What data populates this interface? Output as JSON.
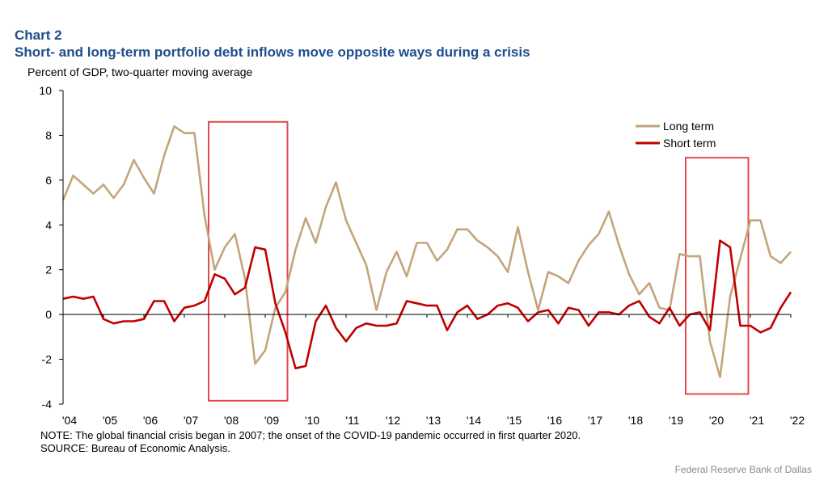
{
  "header": {
    "chart_label": "Chart 2",
    "title": "Short- and long-term portfolio debt inflows move opposite ways during a crisis",
    "y_unit": "Percent of GDP, two-quarter moving  average"
  },
  "footer": {
    "note": "NOTE: The global financial crisis began in 2007; the onset of the COVID-19 pandemic occurred in first quarter 2020.",
    "source": "SOURCE:  Bureau of Economic  Analysis.",
    "credit": "Federal Reserve  Bank of Dallas"
  },
  "colors": {
    "long_term": "#c4a57b",
    "short_term": "#c00000",
    "highlight_box": "#e8474b",
    "axis": "#000000"
  },
  "chart_data": {
    "type": "line",
    "xlabel": "",
    "ylabel": "Percent of GDP, two-quarter moving  average",
    "ylim": [
      -4,
      10
    ],
    "yticks": [
      -4,
      -2,
      0,
      2,
      4,
      6,
      8,
      10
    ],
    "xlim": [
      2004,
      2022
    ],
    "xtick_labels": [
      "'04",
      "'05",
      "'06",
      "'07",
      "'08",
      "'09",
      "'10",
      "'11",
      "'12",
      "'13",
      "'14",
      "'15",
      "'16",
      "'17",
      "'18",
      "'19",
      "'20",
      "'21",
      "'22"
    ],
    "legend": {
      "placement": "top-right",
      "entries": [
        "Long term",
        "Short term"
      ]
    },
    "x": [
      2004.0,
      2004.25,
      2004.5,
      2004.75,
      2005.0,
      2005.25,
      2005.5,
      2005.75,
      2006.0,
      2006.25,
      2006.5,
      2006.75,
      2007.0,
      2007.25,
      2007.5,
      2007.75,
      2008.0,
      2008.25,
      2008.5,
      2008.75,
      2009.0,
      2009.25,
      2009.5,
      2009.75,
      2010.0,
      2010.25,
      2010.5,
      2010.75,
      2011.0,
      2011.25,
      2011.5,
      2011.75,
      2012.0,
      2012.25,
      2012.5,
      2012.75,
      2013.0,
      2013.25,
      2013.5,
      2013.75,
      2014.0,
      2014.25,
      2014.5,
      2014.75,
      2015.0,
      2015.25,
      2015.5,
      2015.75,
      2016.0,
      2016.25,
      2016.5,
      2016.75,
      2017.0,
      2017.25,
      2017.5,
      2017.75,
      2018.0,
      2018.25,
      2018.5,
      2018.75,
      2019.0,
      2019.25,
      2019.5,
      2019.75,
      2020.0,
      2020.25,
      2020.5,
      2020.75,
      2021.0,
      2021.25,
      2021.5,
      2021.75,
      2022.0
    ],
    "series": [
      {
        "name": "Long term",
        "values": [
          5.1,
          6.2,
          5.8,
          5.4,
          5.8,
          5.2,
          5.8,
          6.9,
          6.1,
          5.4,
          7.1,
          8.4,
          8.1,
          8.1,
          4.4,
          2.0,
          3.0,
          3.6,
          1.6,
          -2.2,
          -1.6,
          0.3,
          1.0,
          2.9,
          4.3,
          3.2,
          4.8,
          5.9,
          4.2,
          3.2,
          2.2,
          0.2,
          1.9,
          2.8,
          1.7,
          3.2,
          3.2,
          2.4,
          2.9,
          3.8,
          3.8,
          3.3,
          3.0,
          2.6,
          1.9,
          3.9,
          1.9,
          0.2,
          1.9,
          1.7,
          1.4,
          2.4,
          3.1,
          3.6,
          4.6,
          3.1,
          1.8,
          0.9,
          1.4,
          0.3,
          0.2,
          2.7,
          2.6,
          2.6,
          -1.2,
          -2.8,
          0.8,
          2.5,
          4.2,
          4.2,
          2.6,
          2.3,
          2.8
        ]
      },
      {
        "name": "Short term",
        "values": [
          0.7,
          0.8,
          0.7,
          0.8,
          -0.2,
          -0.4,
          -0.3,
          -0.3,
          -0.2,
          0.6,
          0.6,
          -0.3,
          0.3,
          0.4,
          0.6,
          1.8,
          1.6,
          0.9,
          1.2,
          3.0,
          2.9,
          0.5,
          -0.8,
          -2.4,
          -2.3,
          -0.3,
          0.4,
          -0.6,
          -1.2,
          -0.6,
          -0.4,
          -0.5,
          -0.5,
          -0.4,
          0.6,
          0.5,
          0.4,
          0.4,
          -0.7,
          0.1,
          0.4,
          -0.2,
          0.0,
          0.4,
          0.5,
          0.3,
          -0.3,
          0.1,
          0.2,
          -0.4,
          0.3,
          0.2,
          -0.5,
          0.1,
          0.1,
          0.0,
          0.4,
          0.6,
          -0.1,
          -0.4,
          0.3,
          -0.5,
          0.0,
          0.1,
          -0.7,
          3.3,
          3.0,
          -0.5,
          -0.5,
          -0.8,
          -0.6,
          0.3,
          1.0
        ]
      }
    ],
    "highlight_boxes": [
      {
        "x0": 2007.6,
        "x1": 2009.55,
        "y0": -3.85,
        "y1": 8.6
      },
      {
        "x0": 2019.4,
        "x1": 2020.95,
        "y0": -3.55,
        "y1": 7.0
      }
    ]
  }
}
